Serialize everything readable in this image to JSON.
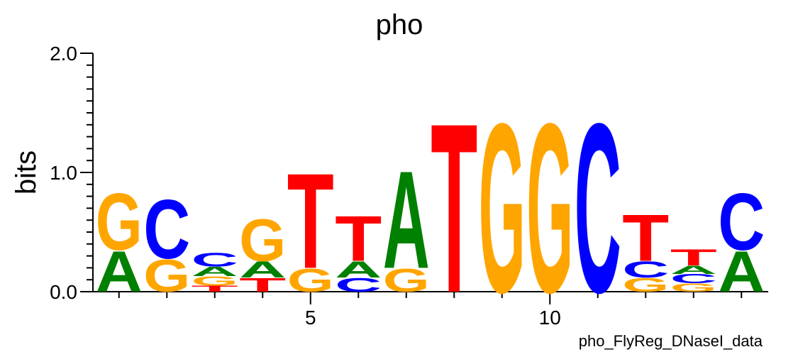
{
  "chart_data": {
    "type": "sequence-logo",
    "title": "pho",
    "ylabel": "bits",
    "xlabel": "",
    "footer": "pho_FlyReg_DNaseI_data",
    "ylim": [
      0,
      2.0
    ],
    "yticks_labeled": [
      "0.0",
      "1.0",
      "2.0"
    ],
    "xticks_labeled": [
      5,
      10
    ],
    "colors": {
      "A": "#008000",
      "C": "#0000ff",
      "G": "#ffa500",
      "T": "#ff0000"
    },
    "positions": [
      {
        "pos": 1,
        "stack": [
          {
            "base": "A",
            "bits": 0.35
          },
          {
            "base": "G",
            "bits": 0.49
          }
        ]
      },
      {
        "pos": 2,
        "stack": [
          {
            "base": "G",
            "bits": 0.28
          },
          {
            "base": "C",
            "bits": 0.51
          }
        ]
      },
      {
        "pos": 3,
        "stack": [
          {
            "base": "T",
            "bits": 0.05
          },
          {
            "base": "G",
            "bits": 0.08
          },
          {
            "base": "A",
            "bits": 0.08
          },
          {
            "base": "C",
            "bits": 0.12
          }
        ]
      },
      {
        "pos": 4,
        "stack": [
          {
            "base": "T",
            "bits": 0.12
          },
          {
            "base": "A",
            "bits": 0.14
          },
          {
            "base": "G",
            "bits": 0.36
          }
        ]
      },
      {
        "pos": 5,
        "stack": [
          {
            "base": "G",
            "bits": 0.2
          },
          {
            "base": "T",
            "bits": 0.82
          }
        ]
      },
      {
        "pos": 6,
        "stack": [
          {
            "base": "C",
            "bits": 0.12
          },
          {
            "base": "A",
            "bits": 0.14
          },
          {
            "base": "T",
            "bits": 0.39
          }
        ]
      },
      {
        "pos": 7,
        "stack": [
          {
            "base": "G",
            "bits": 0.2
          },
          {
            "base": "A",
            "bits": 0.84
          }
        ]
      },
      {
        "pos": 8,
        "stack": [
          {
            "base": "T",
            "bits": 1.46
          }
        ]
      },
      {
        "pos": 9,
        "stack": [
          {
            "base": "G",
            "bits": 1.46
          }
        ]
      },
      {
        "pos": 10,
        "stack": [
          {
            "base": "G",
            "bits": 1.46
          }
        ]
      },
      {
        "pos": 11,
        "stack": [
          {
            "base": "C",
            "bits": 1.46
          }
        ]
      },
      {
        "pos": 12,
        "stack": [
          {
            "base": "G",
            "bits": 0.12
          },
          {
            "base": "C",
            "bits": 0.14
          },
          {
            "base": "T",
            "bits": 0.4
          }
        ]
      },
      {
        "pos": 13,
        "stack": [
          {
            "base": "G",
            "bits": 0.07
          },
          {
            "base": "C",
            "bits": 0.08
          },
          {
            "base": "A",
            "bits": 0.07
          },
          {
            "base": "T",
            "bits": 0.14
          }
        ]
      },
      {
        "pos": 14,
        "stack": [
          {
            "base": "A",
            "bits": 0.35
          },
          {
            "base": "C",
            "bits": 0.49
          }
        ]
      }
    ]
  }
}
